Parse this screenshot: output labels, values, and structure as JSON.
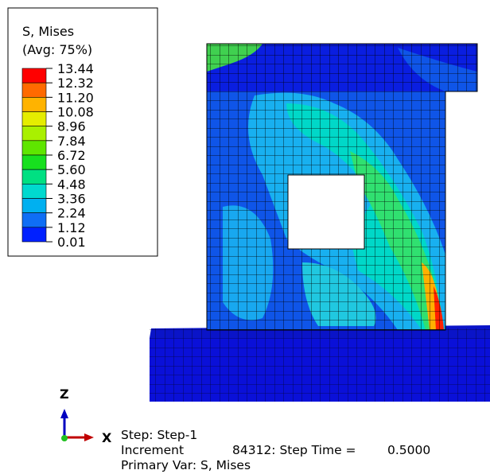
{
  "legend": {
    "title": "S, Mises",
    "subtitle": "(Avg: 75%)",
    "levels": [
      "13.44",
      "12.32",
      "11.20",
      "10.08",
      "8.96",
      "7.84",
      "6.72",
      "5.60",
      "4.48",
      "3.36",
      "2.24",
      "1.12",
      "0.01"
    ]
  },
  "triad": {
    "z": "Z",
    "x": "X"
  },
  "status": {
    "step": "Step: Step-1",
    "increment_label": "Increment",
    "increment": "84312: Step Time =",
    "step_time": "0.5000",
    "primary_var": "Primary Var: S, Mises"
  }
}
